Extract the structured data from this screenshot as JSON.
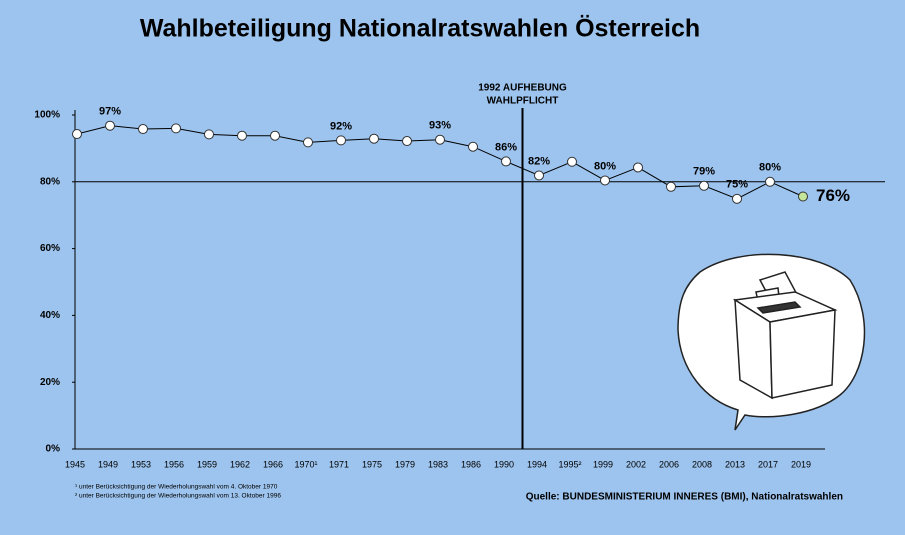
{
  "chart_data": {
    "type": "line",
    "title": "Wahlbeteiligung Nationalratswahlen Österreich",
    "categories": [
      "1945",
      "1949",
      "1953",
      "1956",
      "1959",
      "1962",
      "1966",
      "1970¹",
      "1971",
      "1975",
      "1979",
      "1983",
      "1986",
      "1990",
      "1994",
      "1995²",
      "1999",
      "2002",
      "2006",
      "2008",
      "2013",
      "2017",
      "2019"
    ],
    "values": [
      94.3,
      96.8,
      95.8,
      96.0,
      94.2,
      93.8,
      93.8,
      91.8,
      92.4,
      92.9,
      92.2,
      92.6,
      90.5,
      86.1,
      81.9,
      86.0,
      80.4,
      84.3,
      78.5,
      78.8,
      74.9,
      80.0,
      75.6
    ],
    "value_labels": [
      null,
      "97%",
      null,
      null,
      null,
      null,
      null,
      null,
      "92%",
      null,
      null,
      "93%",
      null,
      "86%",
      "82%",
      null,
      "80%",
      null,
      null,
      "79%",
      "75%",
      "80%",
      "76%"
    ],
    "color": "#000000",
    "marker_color": "#ffffff",
    "highlight_color": "#c5e59a",
    "ylim": [
      0,
      100
    ],
    "yticks": [
      {
        "value": 0,
        "label": "0%"
      },
      {
        "value": 20,
        "label": "20%"
      },
      {
        "value": 40,
        "label": "40%"
      },
      {
        "value": 60,
        "label": "60%"
      },
      {
        "value": 80,
        "label": "80%"
      },
      {
        "value": 100,
        "label": "100%"
      }
    ],
    "reference_line": 80,
    "annotation": [
      "1992 AUFHEBUNG",
      "WAHLPFLICHT"
    ],
    "footnotes": [
      "¹ unter Berücksichtigung der Wiederholungswahl vom 4. Oktober 1970",
      "² unter Berücksichtigung der Wiederholungswahl vom 13. Oktober 1996"
    ],
    "source": "Quelle: BUNDESMINISTERIUM INNERES (BMI), Nationalratswahlen"
  }
}
